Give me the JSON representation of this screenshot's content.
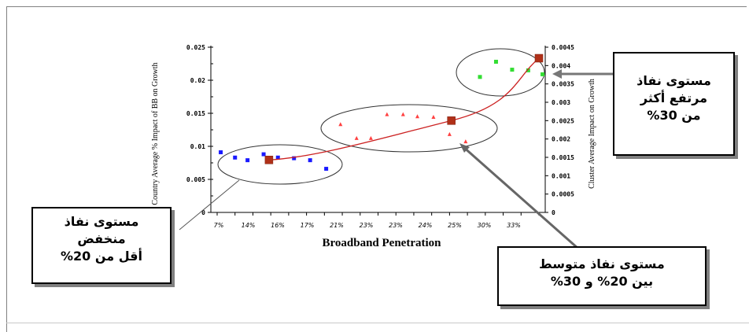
{
  "chart_data": {
    "type": "scatter",
    "xlabel": "Broadband Penetration",
    "ylabel_left": "Country Average % Impact of BB on Growth",
    "ylabel_right": "Cluster Average Impact on Growth",
    "left_axis": {
      "ticks": [
        "0",
        "0.005",
        "0.01",
        "0.015",
        "0.02",
        "0.025"
      ],
      "ylim": [
        0,
        0.025
      ]
    },
    "right_axis": {
      "ticks": [
        "0",
        "0.0005",
        "0.001",
        "0.0015",
        "0.002",
        "0.0025",
        "0.003",
        "0.0035",
        "0.004",
        "0.0045"
      ],
      "ylim": [
        0,
        0.0045
      ]
    },
    "x_ticks": [
      "7%",
      "14%",
      "16%",
      "17%",
      "21%",
      "23%",
      "23%",
      "24%",
      "25%",
      "30%",
      "33%"
    ],
    "series": [
      {
        "color": "#1a1aff",
        "marker": "square",
        "points": [
          [
            0.2,
            0.0091
          ],
          [
            1.0,
            0.0083
          ],
          [
            1.7,
            0.0079
          ],
          [
            2.6,
            0.0088
          ],
          [
            3.4,
            0.0083
          ],
          [
            4.3,
            0.0082
          ],
          [
            5.2,
            0.0079
          ],
          [
            6.1,
            0.0066
          ]
        ]
      },
      {
        "color": "#ff4040",
        "marker": "triangle",
        "points": [
          [
            6.9,
            0.0133
          ],
          [
            7.8,
            0.0112
          ],
          [
            8.6,
            0.0112
          ],
          [
            9.5,
            0.0148
          ],
          [
            10.4,
            0.0148
          ],
          [
            11.2,
            0.0145
          ],
          [
            12.1,
            0.0144
          ],
          [
            13.0,
            0.0118
          ],
          [
            13.9,
            0.0107
          ]
        ]
      },
      {
        "color": "#33dd33",
        "marker": "square",
        "points": [
          [
            14.7,
            0.0205
          ],
          [
            15.6,
            0.0228
          ],
          [
            16.5,
            0.0216
          ],
          [
            17.4,
            0.0215
          ],
          [
            18.2,
            0.0209
          ]
        ]
      }
    ],
    "cluster_averages": {
      "color": "#b03018",
      "marker": "square",
      "points": [
        [
          2.9,
          0.00143
        ],
        [
          13.1,
          0.0025
        ],
        [
          18.0,
          0.0042
        ]
      ]
    }
  },
  "callouts": {
    "low": [
      "مستوى نفاذ",
      "منخفض",
      "أقل من 20%"
    ],
    "medium": [
      "مستوى نفاذ متوسط",
      "بين 20% و 30%"
    ],
    "high": [
      "مستوى نفاذ",
      "مرتفع أكثر",
      "من 30%"
    ]
  }
}
